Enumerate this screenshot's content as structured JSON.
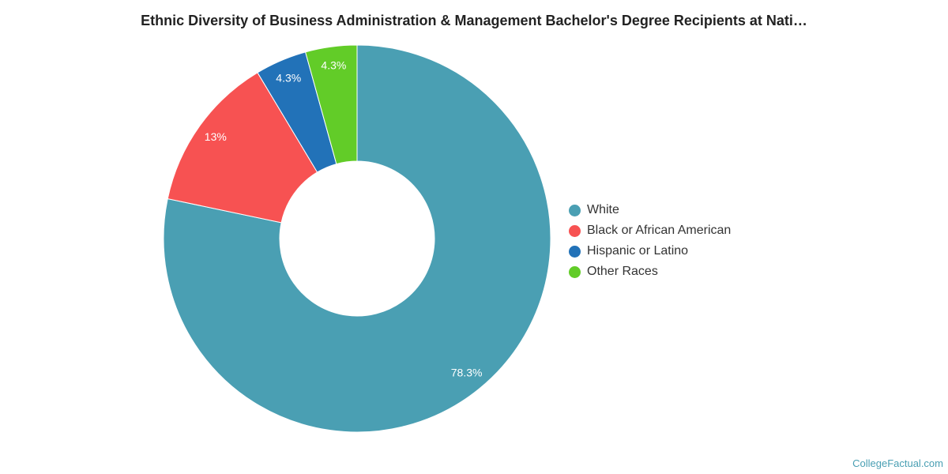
{
  "chart_data": {
    "type": "pie",
    "title": "Ethnic Diversity of Business Administration & Management Bachelor's Degree Recipients at Nati…",
    "donut": true,
    "legend_position": "right",
    "slices": [
      {
        "name": "White",
        "value": 78.3,
        "label": "78.3%",
        "color": "#4a9fb3"
      },
      {
        "name": "Black or African American",
        "value": 13.1,
        "label": "13%",
        "color": "#f75252"
      },
      {
        "name": "Hispanic or Latino",
        "value": 4.3,
        "label": "4.3%",
        "color": "#2272b8"
      },
      {
        "name": "Other Races",
        "value": 4.3,
        "label": "4.3%",
        "color": "#62cc28"
      }
    ]
  },
  "footer": {
    "credit": "CollegeFactual.com"
  }
}
